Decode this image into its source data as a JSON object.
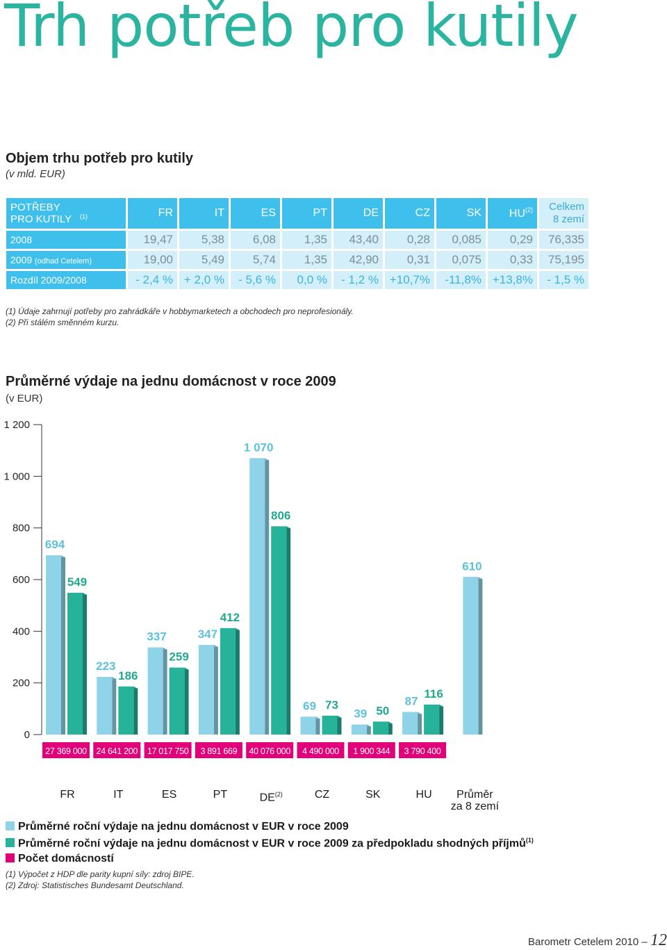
{
  "header": {
    "title": "Trh potřeb pro kutily"
  },
  "section": {
    "title": "Objem trhu potřeb pro kutily",
    "subtitle": "(v mld. EUR)"
  },
  "table": {
    "header": [
      {
        "text": "POTŘEBY PRO KUTILY",
        "note": "(1)"
      },
      {
        "text": "FR"
      },
      {
        "text": "IT"
      },
      {
        "text": "ES"
      },
      {
        "text": "PT"
      },
      {
        "text": "DE"
      },
      {
        "text": "CZ"
      },
      {
        "text": "SK"
      },
      {
        "text": "HU",
        "note": "(2)"
      },
      {
        "text": "Celkem 8 zemí"
      }
    ],
    "rows": [
      {
        "label": "2008",
        "cells": [
          "19,47",
          "5,38",
          "6,08",
          "1,35",
          "43,40",
          "0,28",
          "0,085",
          "0,29",
          "76,335"
        ]
      },
      {
        "label": "2009",
        "note": "(odhad Cetelem)",
        "cells": [
          "19,00",
          "5,49",
          "5,74",
          "1,35",
          "42,90",
          "0,31",
          "0,075",
          "0,33",
          "75,195"
        ]
      },
      {
        "label": "Rozdíl 2009/2008",
        "cells": [
          "- 2,4 %",
          "+ 2,0 %",
          "- 5,6 %",
          "0,0 %",
          "- 1,2 %",
          "+10,7%",
          "-11,8%",
          "+13,8%",
          "- 1,5 %"
        ]
      }
    ],
    "notes": [
      "(1) Údaje zahrnují potřeby pro zahrádkáře v hobbymarketech a obchodech pro neprofesionály.",
      "(2) Při stálém směnném kurzu."
    ]
  },
  "chart_data": {
    "type": "bar",
    "title": "Průměrné výdaje na jednu domácnost v roce 2009",
    "subtitle": "(v EUR)",
    "categories": [
      "FR",
      "IT",
      "ES",
      "PT",
      "DE",
      "CZ",
      "SK",
      "HU",
      "Průměr za 8 zemí"
    ],
    "category_notes": {
      "4": "(2)"
    },
    "series": [
      {
        "name": "Průměrné roční výdaje na jednu domácnost v EUR v roce 2009",
        "color": "#8fd3e8",
        "values": [
          694,
          223,
          337,
          347,
          1070,
          69,
          39,
          87,
          610
        ],
        "value_labels": [
          "694",
          "223",
          "337",
          "347",
          "1 070",
          "69",
          "39",
          "87",
          "610"
        ]
      },
      {
        "name": "Průměrné roční výdaje na jednu domácnost v EUR v roce 2009 za předpokladu shodných příjmů",
        "name_note": "(1)",
        "color": "#26b39a",
        "values": [
          549,
          186,
          259,
          412,
          806,
          73,
          50,
          116,
          null
        ]
      }
    ],
    "households": {
      "name": "Počet domácností",
      "color": "#e2007a",
      "values": [
        27369000,
        24641200,
        17017750,
        3891669,
        40076000,
        4490000,
        1900344,
        3790400,
        null
      ],
      "value_labels": [
        "27 369 000",
        "24 641 200",
        "17 017 750",
        "3 891 669",
        "40 076 000",
        "4 490 000",
        "1 900 344",
        "3 790 400",
        null
      ]
    },
    "ylim": [
      0,
      1200
    ],
    "yticks": [
      0,
      200,
      400,
      600,
      800,
      {
        "value": 1000,
        "label": "1 000"
      },
      {
        "value": 1200,
        "label": "1 200"
      }
    ],
    "grid": false,
    "notes": [
      "(1) Výpočet z HDP dle parity kupní síly: zdroj BIPE.",
      "(2) Zdroj: Statistisches Bundesamt Deutschland."
    ]
  },
  "footer": {
    "text": "Barometr Cetelem 2010 –",
    "page": "12"
  }
}
